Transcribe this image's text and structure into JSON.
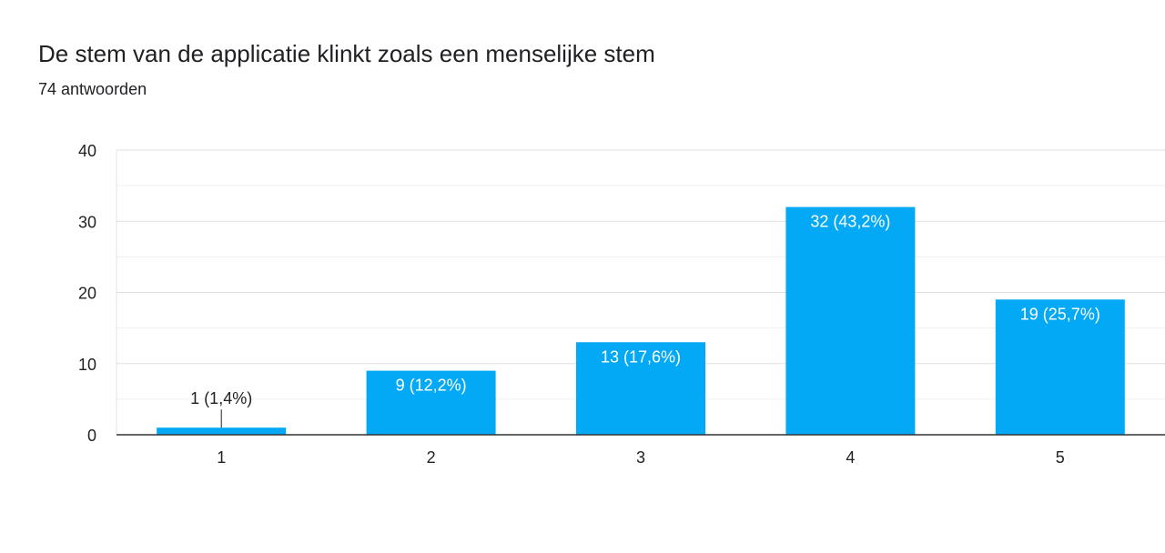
{
  "header": {
    "title": "De stem van de applicatie klinkt zoals een menselijke stem",
    "responses": "74 antwoorden"
  },
  "colors": {
    "bar": "#03a9f4",
    "axis": "#333333",
    "grid": "#e0e0e0",
    "label_inside": "#ffffff",
    "label_outside": "#222222"
  },
  "chart_data": {
    "type": "bar",
    "categories": [
      "1",
      "2",
      "3",
      "4",
      "5"
    ],
    "values": [
      1,
      9,
      13,
      32,
      19
    ],
    "data_labels": [
      "1 (1,4%)",
      "9 (12,2%)",
      "13 (17,6%)",
      "32 (43,2%)",
      "19 (25,7%)"
    ],
    "ylim": [
      0,
      40
    ],
    "yticks": [
      0,
      10,
      20,
      30,
      40
    ],
    "grid": true,
    "legend": "none"
  }
}
